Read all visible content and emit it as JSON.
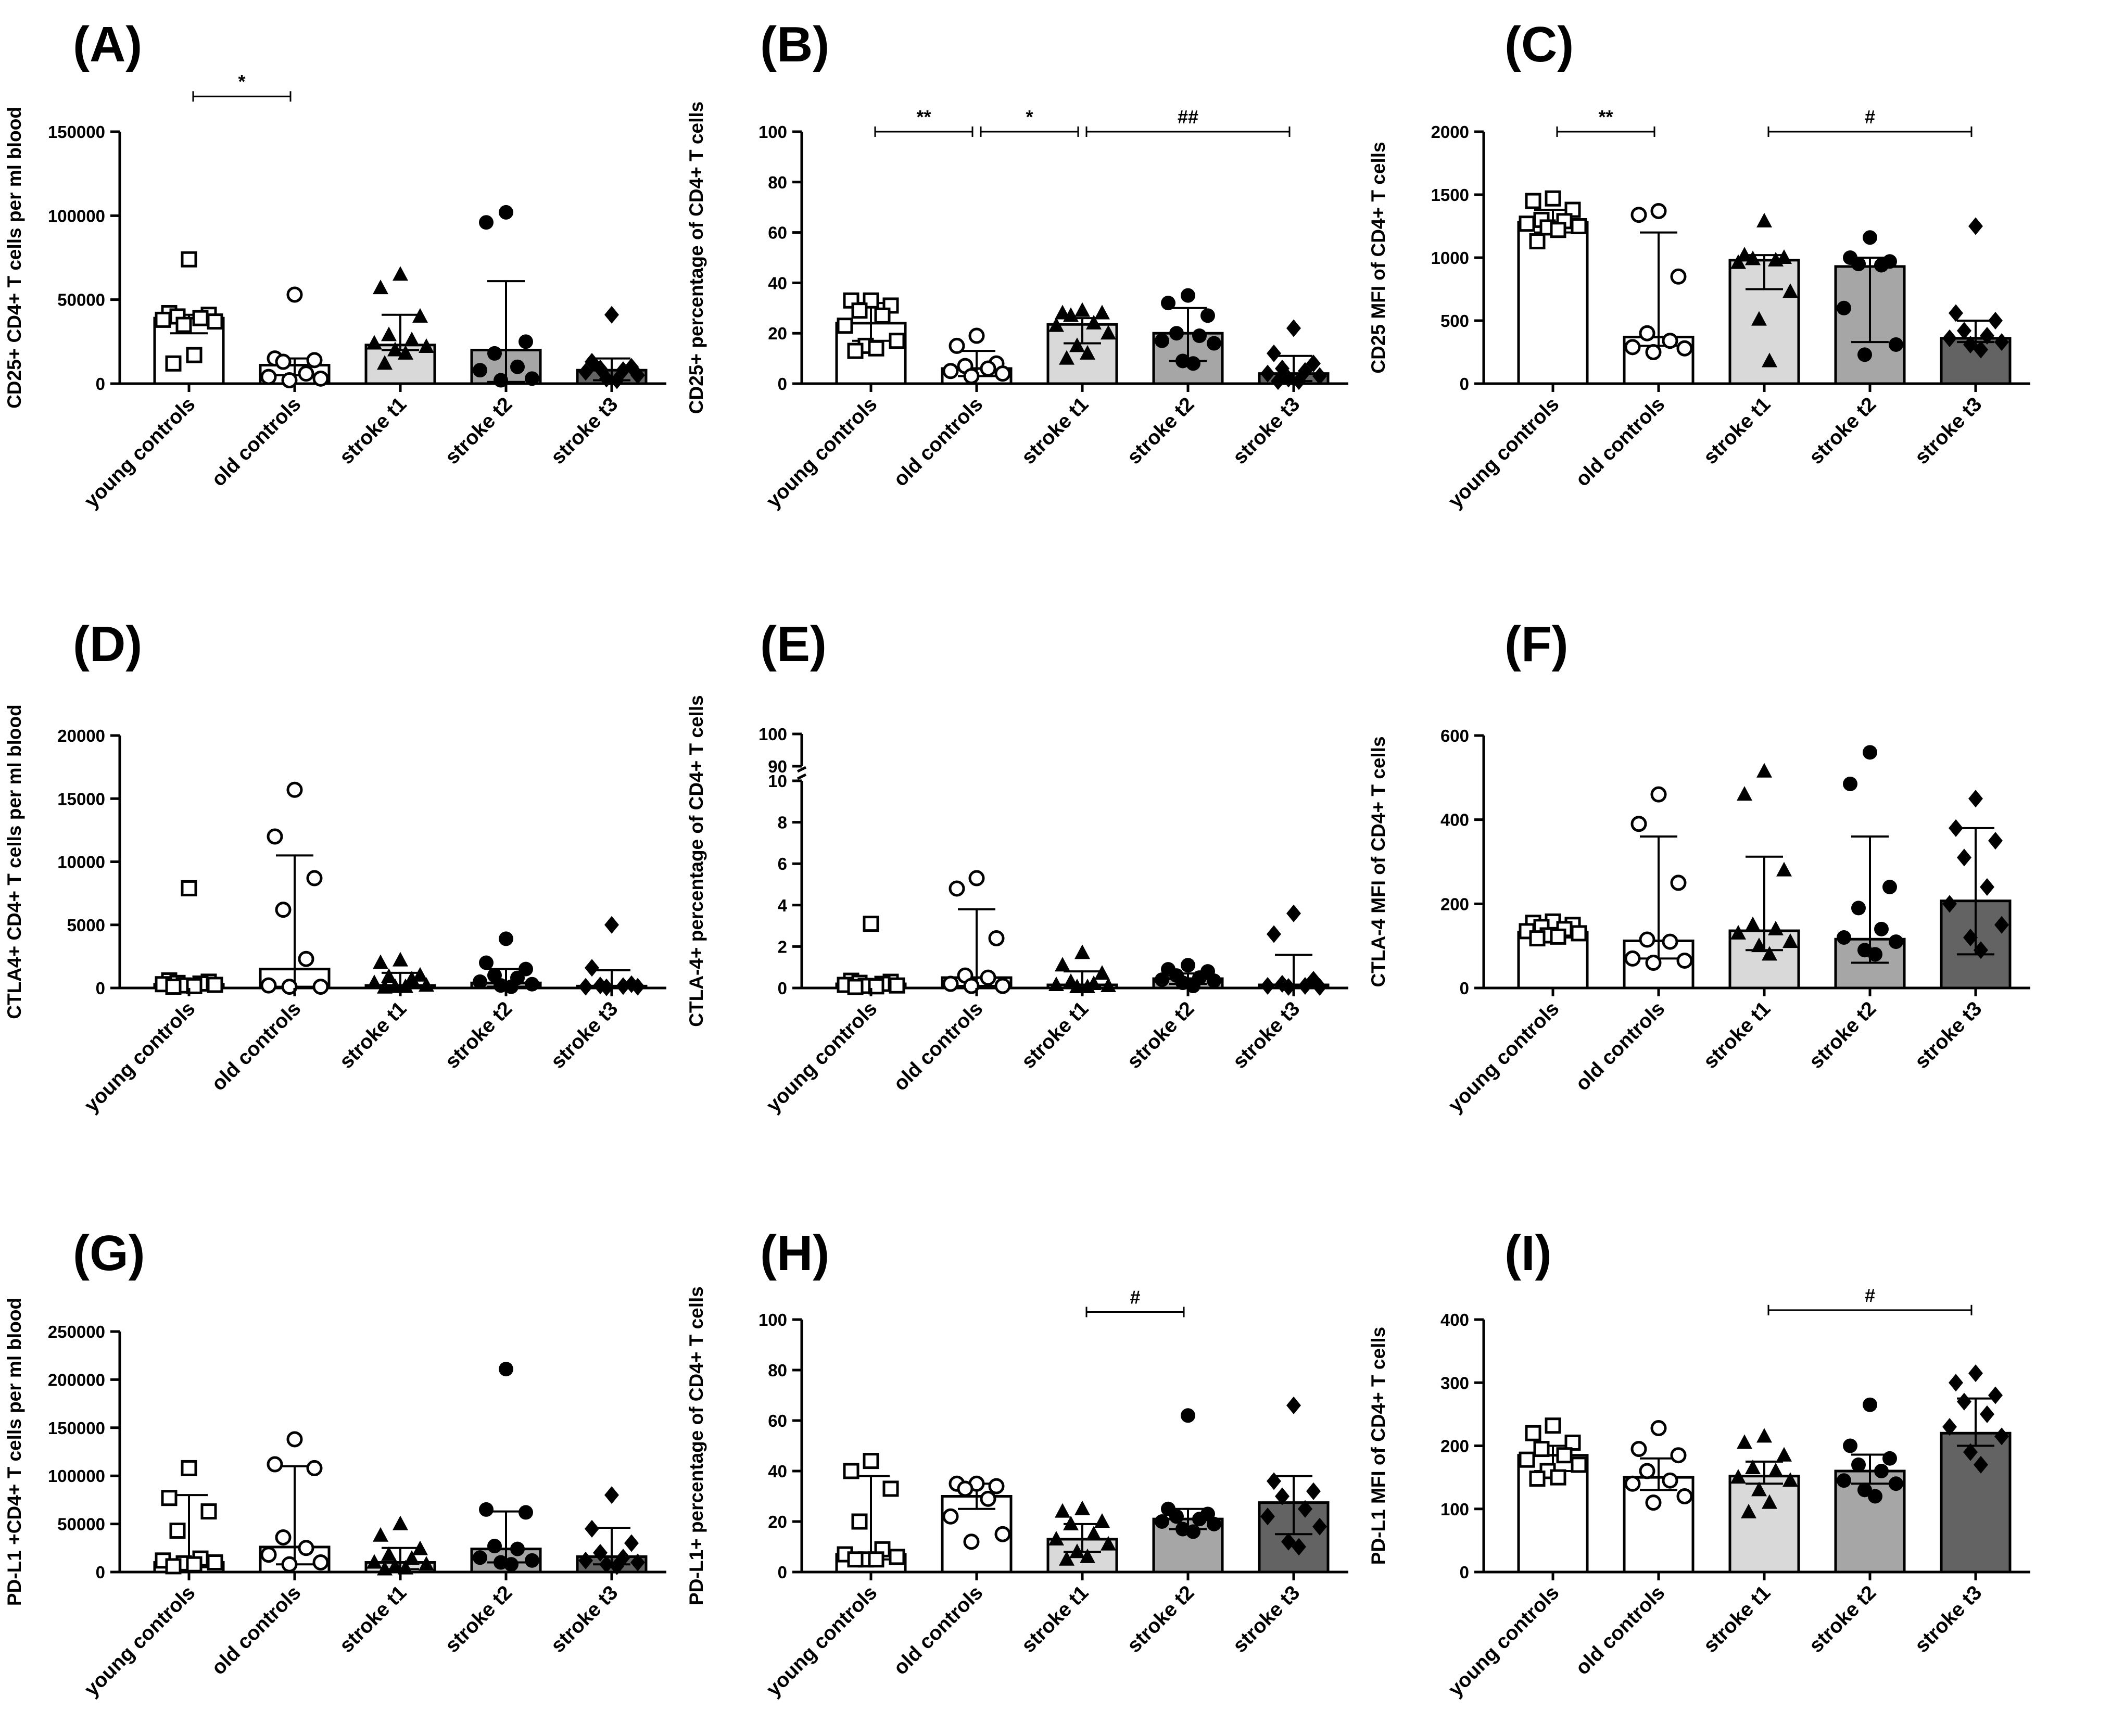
{
  "figure": {
    "grid": false
  },
  "chart_data": [
    {
      "type": "bar",
      "panel": "(A)",
      "ylabel": "CD25+ CD4+ T cells per ml blood",
      "ylim": [
        0,
        150000
      ],
      "yticks": [
        0,
        50000,
        100000,
        150000
      ],
      "categories": [
        "young controls",
        "old controls",
        "stroke t1",
        "stroke t2",
        "stroke t3"
      ],
      "values": [
        39000,
        11000,
        23000,
        20000,
        8000
      ],
      "error_low": [
        30000,
        5000,
        20000,
        1000,
        2000
      ],
      "error_high": [
        41000,
        15000,
        41000,
        61000,
        15000
      ],
      "points": [
        [
          74000,
          42000,
          41000,
          40000,
          39000,
          38000,
          37000,
          35000,
          17000,
          12000
        ],
        [
          53000,
          15000,
          14000,
          13000,
          6000,
          4000,
          3000,
          2000
        ],
        [
          65000,
          57000,
          40000,
          29000,
          26000,
          24000,
          22000,
          20000,
          18000,
          12000
        ],
        [
          102000,
          96000,
          25000,
          18000,
          10000,
          8000,
          3000,
          2000
        ],
        [
          41000,
          13000,
          10000,
          9000,
          8000,
          7000,
          5000,
          3000,
          2000
        ]
      ],
      "significance": [
        {
          "from": 0,
          "to": 1,
          "label": "*",
          "value": 171000
        }
      ]
    },
    {
      "type": "bar",
      "panel": "(B)",
      "ylabel": "CD25+ percentage of CD4+ T cells",
      "ylim": [
        0,
        100
      ],
      "yticks": [
        0,
        20,
        40,
        60,
        80,
        100
      ],
      "categories": [
        "young controls",
        "old controls",
        "stroke t1",
        "stroke t2",
        "stroke t3"
      ],
      "values": [
        24,
        6,
        23.5,
        20,
        4
      ],
      "error_low": [
        17,
        3,
        16,
        9,
        1
      ],
      "error_high": [
        32,
        13,
        26,
        30,
        11
      ],
      "points": [
        [
          33,
          33,
          31,
          29,
          27,
          23,
          17,
          15,
          14,
          13
        ],
        [
          19,
          15,
          8,
          7,
          6,
          5,
          4,
          3
        ],
        [
          29,
          28,
          28,
          27,
          24,
          23,
          20,
          15,
          12,
          10
        ],
        [
          35,
          32,
          27,
          20,
          19,
          17,
          16,
          9,
          8
        ],
        [
          22,
          12,
          8,
          6,
          5,
          4,
          3,
          2,
          1,
          1
        ]
      ],
      "significance": [
        {
          "from": 0,
          "to": 1,
          "label": "**",
          "value": 100
        },
        {
          "from": 1,
          "to": 2,
          "label": "*",
          "value": 100
        },
        {
          "from": 2,
          "to": 4,
          "label": "##",
          "value": 100
        }
      ]
    },
    {
      "type": "bar",
      "panel": "(C)",
      "ylabel": "CD25 MFI of CD4+ T cells",
      "ylim": [
        0,
        2000
      ],
      "yticks": [
        0,
        500,
        1000,
        1500,
        2000
      ],
      "categories": [
        "young controls",
        "old controls",
        "stroke t1",
        "stroke t2",
        "stroke t3"
      ],
      "values": [
        1280,
        370,
        980,
        930,
        360
      ],
      "error_low": [
        1200,
        300,
        750,
        330,
        330
      ],
      "error_high": [
        1380,
        1200,
        1020,
        1000,
        500
      ],
      "points": [
        [
          1470,
          1450,
          1380,
          1300,
          1290,
          1270,
          1250,
          1240,
          1220,
          1130
        ],
        [
          1370,
          1340,
          850,
          400,
          340,
          290,
          280,
          250
        ],
        [
          1290,
          1020,
          1000,
          990,
          980,
          960,
          730,
          510,
          180
        ],
        [
          1160,
          1000,
          970,
          950,
          940,
          600,
          310,
          230
        ],
        [
          1250,
          560,
          500,
          420,
          380,
          360,
          330,
          310,
          270
        ]
      ],
      "significance": [
        {
          "from": 0,
          "to": 1,
          "label": "**",
          "value": 2000
        },
        {
          "from": 2,
          "to": 4,
          "label": "#",
          "value": 2000
        }
      ]
    },
    {
      "type": "bar",
      "panel": "(D)",
      "ylabel": "CTLA4+ CD4+ T cells per ml blood",
      "ylim": [
        0,
        20000
      ],
      "yticks": [
        0,
        5000,
        10000,
        15000,
        20000
      ],
      "categories": [
        "young controls",
        "old controls",
        "stroke t1",
        "stroke t2",
        "stroke t3"
      ],
      "values": [
        300,
        1500,
        200,
        400,
        150
      ],
      "error_low": [
        100,
        100,
        50,
        100,
        50
      ],
      "error_high": [
        600,
        10500,
        1200,
        1500,
        1400
      ],
      "points": [
        [
          7900,
          600,
          500,
          400,
          350,
          300,
          250,
          200,
          150,
          100
        ],
        [
          15700,
          12000,
          8700,
          6200,
          2300,
          200,
          100,
          100
        ],
        [
          2200,
          2000,
          1000,
          900,
          700,
          400,
          200,
          100,
          100,
          50
        ],
        [
          3900,
          2000,
          1500,
          1000,
          800,
          500,
          300,
          200,
          100
        ],
        [
          5000,
          1600,
          300,
          200,
          150,
          100,
          100,
          50
        ]
      ],
      "significance": []
    },
    {
      "type": "bar",
      "panel": "(E)",
      "ylabel": "CTLA-4+ percentage of CD4+ T cells",
      "scale": "broken",
      "ylim": [
        0,
        10
      ],
      "upper_ylim": [
        90,
        100
      ],
      "yticks": [
        0,
        2,
        4,
        6,
        8,
        10
      ],
      "upper_yticks": [
        90,
        100
      ],
      "categories": [
        "young controls",
        "old controls",
        "stroke t1",
        "stroke t2",
        "stroke t3"
      ],
      "values": [
        0.2,
        0.5,
        0.15,
        0.45,
        0.15
      ],
      "error_low": [
        0.05,
        0.1,
        0.05,
        0.2,
        0.05
      ],
      "error_high": [
        0.35,
        3.8,
        0.8,
        0.7,
        1.6
      ],
      "points": [
        [
          3.1,
          0.35,
          0.3,
          0.25,
          0.2,
          0.15,
          0.12,
          0.1,
          0.08,
          0.05
        ],
        [
          5.3,
          4.8,
          2.4,
          0.6,
          0.5,
          0.2,
          0.1,
          0.1
        ],
        [
          1.7,
          1.1,
          0.7,
          0.3,
          0.2,
          0.15,
          0.1,
          0.05,
          0.05
        ],
        [
          1.1,
          0.9,
          0.8,
          0.6,
          0.5,
          0.4,
          0.35,
          0.25,
          0.1
        ],
        [
          3.6,
          2.6,
          0.4,
          0.2,
          0.1,
          0.1,
          0.05,
          0.05
        ]
      ],
      "significance": []
    },
    {
      "type": "bar",
      "panel": "(F)",
      "ylabel": "CTLA-4 MFI of CD4+ T cells",
      "ylim": [
        0,
        600
      ],
      "yticks": [
        0,
        200,
        400,
        600
      ],
      "categories": [
        "young controls",
        "old controls",
        "stroke t1",
        "stroke t2",
        "stroke t3"
      ],
      "values": [
        133,
        112,
        136,
        116,
        207
      ],
      "error_low": [
        120,
        70,
        90,
        60,
        80
      ],
      "error_high": [
        145,
        360,
        312,
        360,
        380
      ],
      "points": [
        [
          158,
          155,
          150,
          145,
          140,
          135,
          130,
          125,
          122,
          118
        ],
        [
          460,
          390,
          250,
          115,
          110,
          70,
          65,
          60
        ],
        [
          515,
          460,
          280,
          150,
          140,
          130,
          110,
          100,
          80
        ],
        [
          560,
          485,
          240,
          190,
          140,
          120,
          110,
          90,
          80
        ],
        [
          450,
          380,
          350,
          310,
          240,
          200,
          150,
          120,
          90
        ]
      ],
      "significance": []
    },
    {
      "type": "bar",
      "panel": "(G)",
      "ylabel": "PD-L1 +CD4+ T cells per ml blood",
      "ylim": [
        0,
        250000
      ],
      "yticks": [
        0,
        50000,
        100000,
        150000,
        200000,
        250000
      ],
      "categories": [
        "young controls",
        "old controls",
        "stroke t1",
        "stroke t2",
        "stroke t3"
      ],
      "values": [
        10000,
        26000,
        10000,
        24000,
        16000
      ],
      "error_low": [
        5000,
        8000,
        3000,
        10000,
        8000
      ],
      "error_high": [
        80000,
        110000,
        25000,
        63000,
        46000
      ],
      "points": [
        [
          108000,
          77000,
          63000,
          43000,
          14000,
          12000,
          10000,
          9000,
          8000,
          6000
        ],
        [
          138000,
          112000,
          108000,
          36000,
          25000,
          18000,
          10000,
          8000
        ],
        [
          50000,
          38000,
          24000,
          18000,
          14000,
          10000,
          8000,
          6000,
          4000,
          3000
        ],
        [
          211000,
          65000,
          62000,
          27000,
          24000,
          15000,
          12000,
          10000,
          8000
        ],
        [
          80000,
          45000,
          30000,
          20000,
          15000,
          12000,
          10000,
          8000,
          6000
        ]
      ],
      "significance": []
    },
    {
      "type": "bar",
      "panel": "(H)",
      "ylabel": "PD-L1+ percentage of CD4+ T cells",
      "ylim": [
        0,
        100
      ],
      "yticks": [
        0,
        20,
        40,
        60,
        80,
        100
      ],
      "categories": [
        "young controls",
        "old controls",
        "stroke t1",
        "stroke t2",
        "stroke t3"
      ],
      "values": [
        7,
        30,
        13,
        21,
        27.5
      ],
      "error_low": [
        5,
        25,
        8,
        17,
        15
      ],
      "error_high": [
        38,
        35,
        19,
        25,
        38
      ],
      "points": [
        [
          44,
          40,
          33,
          20,
          9,
          7,
          6,
          5,
          5,
          5
        ],
        [
          35,
          35,
          34,
          33,
          29,
          22,
          15,
          12
        ],
        [
          25,
          24,
          20,
          19,
          15,
          13,
          11,
          8,
          6,
          5
        ],
        [
          62,
          25,
          23,
          22,
          21,
          20,
          19,
          17,
          16
        ],
        [
          66,
          36,
          32,
          30,
          25,
          22,
          18,
          12,
          10
        ]
      ],
      "significance": [
        {
          "from": 2,
          "to": 3,
          "label": "#",
          "value": 103
        }
      ]
    },
    {
      "type": "bar",
      "panel": "(I)",
      "ylabel": "PD-L1 MFI of CD4+ T cells",
      "ylim": [
        0,
        400
      ],
      "yticks": [
        0,
        100,
        200,
        300,
        400
      ],
      "categories": [
        "young controls",
        "old controls",
        "stroke t1",
        "stroke t2",
        "stroke t3"
      ],
      "values": [
        185,
        150,
        152,
        160,
        220
      ],
      "error_low": [
        160,
        130,
        140,
        140,
        200
      ],
      "error_high": [
        200,
        180,
        175,
        186,
        275
      ],
      "points": [
        [
          232,
          220,
          205,
          195,
          185,
          178,
          170,
          160,
          150,
          148
        ],
        [
          228,
          195,
          185,
          160,
          145,
          140,
          120,
          110
        ],
        [
          215,
          205,
          185,
          165,
          160,
          150,
          145,
          130,
          110,
          95
        ],
        [
          265,
          200,
          180,
          170,
          160,
          145,
          140,
          130,
          120
        ],
        [
          315,
          300,
          280,
          270,
          250,
          230,
          215,
          190,
          170
        ]
      ],
      "significance": [
        {
          "from": 2,
          "to": 4,
          "label": "#",
          "value": 415
        }
      ]
    }
  ]
}
